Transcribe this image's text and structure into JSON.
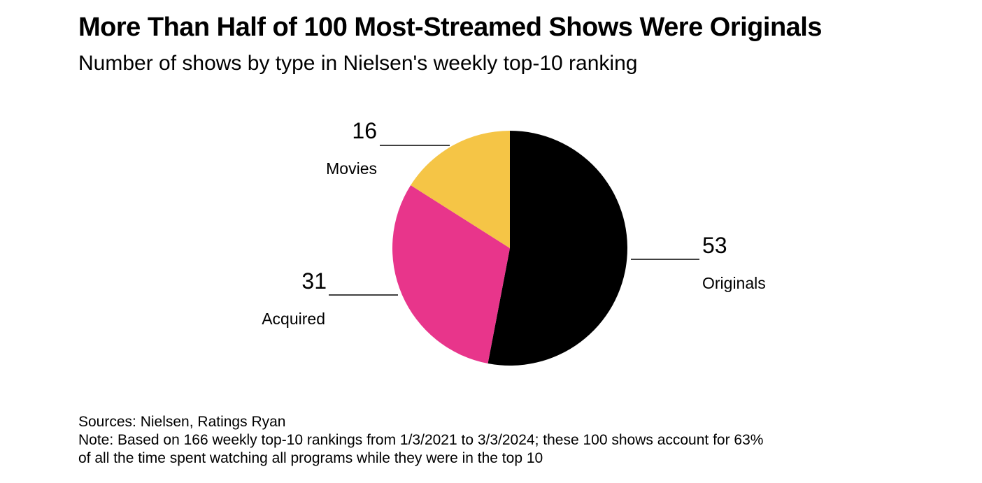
{
  "title": "More Than Half of 100 Most-Streamed Shows Were Originals",
  "subtitle": "Number of shows by type in Nielsen's weekly top-10 ranking",
  "chart_data": {
    "type": "pie",
    "start": "12 o'clock",
    "direction": "clockwise",
    "slices": [
      {
        "label": "Originals",
        "value": 53,
        "color": "#000000"
      },
      {
        "label": "Acquired",
        "value": 31,
        "color": "#e8358b"
      },
      {
        "label": "Movies",
        "value": 16,
        "color": "#f5c546"
      }
    ]
  },
  "footer": {
    "sources": "Sources: Nielsen, Ratings Ryan",
    "note_line1": "Note: Based on 166 weekly top-10 rankings from 1/3/2021 to 3/3/2024; these 100 shows account for 63%",
    "note_line2": "of all the time spent watching all programs while they were in the top 10"
  }
}
